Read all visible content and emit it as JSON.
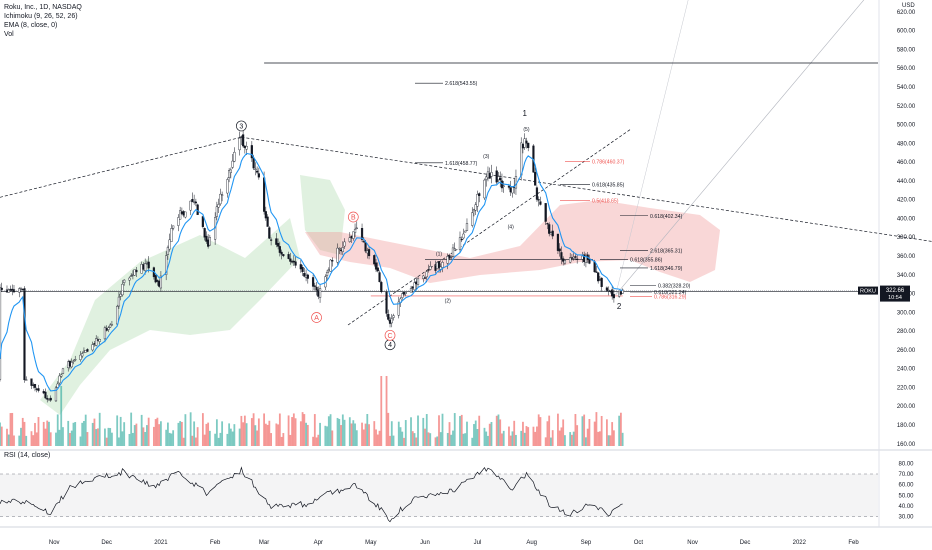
{
  "legend": {
    "line1": "Roku, Inc., 1D, NASDAQ",
    "line2": "Ichimoku (9, 26, 52, 26)",
    "line3": "EMA (8, close, 0)",
    "line4": "Vol"
  },
  "rsi_label": "RSI (14, close)",
  "currency": "USD",
  "colors": {
    "up": "#26a69a",
    "down": "#ef5350",
    "ema": "#2196f3",
    "cloud_green": "#a5d6a7",
    "cloud_red": "#ef9a9a"
  },
  "chart_data": {
    "type": "candlestick",
    "title": "Roku, Inc., 1D, NASDAQ",
    "price_axis": {
      "ylim": [
        155,
        630
      ],
      "ticks": [
        160,
        180,
        200,
        220,
        240,
        260,
        280,
        300,
        320,
        340,
        360,
        380,
        400,
        420,
        440,
        460,
        480,
        500,
        520,
        540,
        560,
        580,
        600,
        620
      ],
      "tick_labels": [
        "160.00",
        "180.00",
        "200.00",
        "220.00",
        "240.00",
        "260.00",
        "280.00",
        "300.00",
        "320.00",
        "340.00",
        "360.00",
        "380.00",
        "400.00",
        "420.00",
        "440.00",
        "460.00",
        "480.00",
        "500.00",
        "520.00",
        "540.00",
        "560.00",
        "580.00",
        "600.00",
        "620.00"
      ]
    },
    "time_axis": [
      "Nov",
      "Dec",
      "2021",
      "Feb",
      "Mar",
      "Apr",
      "May",
      "Jun",
      "Jul",
      "Aug",
      "Sep",
      "Oct",
      "Nov",
      "Dec",
      "2022",
      "Feb"
    ],
    "price_anchors": [
      {
        "date": "2020-10-15",
        "price": 228
      },
      {
        "date": "2020-10-30",
        "price": 205
      },
      {
        "date": "2020-11-06",
        "price": 240
      },
      {
        "date": "2020-11-20",
        "price": 258
      },
      {
        "date": "2020-12-04",
        "price": 290
      },
      {
        "date": "2020-12-11",
        "price": 335
      },
      {
        "date": "2020-12-24",
        "price": 350
      },
      {
        "date": "2020-12-31",
        "price": 330
      },
      {
        "date": "2021-01-08",
        "price": 395
      },
      {
        "date": "2021-01-20",
        "price": 420
      },
      {
        "date": "2021-01-28",
        "price": 372
      },
      {
        "date": "2021-02-05",
        "price": 430
      },
      {
        "date": "2021-02-16",
        "price": 486
      },
      {
        "date": "2021-02-25",
        "price": 450
      },
      {
        "date": "2021-03-05",
        "price": 372
      },
      {
        "date": "2021-03-19",
        "price": 350
      },
      {
        "date": "2021-04-01",
        "price": 320
      },
      {
        "date": "2021-04-08",
        "price": 352
      },
      {
        "date": "2021-04-16",
        "price": 375
      },
      {
        "date": "2021-04-23",
        "price": 385
      },
      {
        "date": "2021-05-04",
        "price": 348
      },
      {
        "date": "2021-05-12",
        "price": 285
      },
      {
        "date": "2021-05-20",
        "price": 320
      },
      {
        "date": "2021-06-04",
        "price": 345
      },
      {
        "date": "2021-06-14",
        "price": 355
      },
      {
        "date": "2021-06-23",
        "price": 382
      },
      {
        "date": "2021-07-06",
        "price": 448
      },
      {
        "date": "2021-07-13",
        "price": 440
      },
      {
        "date": "2021-07-21",
        "price": 428
      },
      {
        "date": "2021-07-26",
        "price": 475
      },
      {
        "date": "2021-07-29",
        "price": 484
      },
      {
        "date": "2021-08-05",
        "price": 415
      },
      {
        "date": "2021-08-12",
        "price": 380
      },
      {
        "date": "2021-08-20",
        "price": 352
      },
      {
        "date": "2021-08-27",
        "price": 360
      },
      {
        "date": "2021-09-02",
        "price": 356
      },
      {
        "date": "2021-09-10",
        "price": 330
      },
      {
        "date": "2021-09-17",
        "price": 315
      },
      {
        "date": "2021-09-22",
        "price": 322.66
      }
    ],
    "last_price": {
      "symbol": "ROKU",
      "price": "322.66",
      "countdown": "10:54"
    },
    "annotations": [
      {
        "label": "2.618(543.55)",
        "price": 543.55,
        "color": "#131722"
      },
      {
        "label": "1.618(458.77)",
        "price": 458.77,
        "color": "#131722"
      },
      {
        "label": "0.786(460.37)",
        "price": 460.37,
        "color": "#ef5350"
      },
      {
        "label": "0.618(435.85)",
        "price": 435.85,
        "color": "#131722"
      },
      {
        "label": "0.5(418.65)",
        "price": 418.65,
        "color": "#ef5350"
      },
      {
        "label": "0.618(402.34)",
        "price": 402.34,
        "color": "#131722"
      },
      {
        "label": "2.618(365.31)",
        "price": 365.31,
        "color": "#131722"
      },
      {
        "label": "0.618(355.86)",
        "price": 355.86,
        "color": "#131722"
      },
      {
        "label": "1.618(346.79)",
        "price": 346.79,
        "color": "#131722"
      },
      {
        "label": "0.382(328.20)",
        "price": 328.2,
        "color": "#131722"
      },
      {
        "label": "0.618(321.24)",
        "price": 321.24,
        "color": "#131722"
      },
      {
        "label": "0.786(316.29)",
        "price": 316.29,
        "color": "#ef5350"
      }
    ],
    "wave_labels": [
      {
        "label": "3",
        "style": "circle",
        "date": "2021-02-16",
        "price": 498
      },
      {
        "label": "4",
        "style": "circle",
        "date": "2021-05-12",
        "price": 265
      },
      {
        "label": "A",
        "style": "circle-red",
        "date": "2021-03-31",
        "price": 294
      },
      {
        "label": "B",
        "style": "circle-red",
        "date": "2021-04-21",
        "price": 401
      },
      {
        "label": "C",
        "style": "circle-red",
        "date": "2021-05-12",
        "price": 275
      },
      {
        "label": "1",
        "style": "plain",
        "date": "2021-07-28",
        "price": 512
      },
      {
        "label": "2",
        "style": "plain",
        "date": "2021-09-20",
        "price": 306
      },
      {
        "label": "(1)",
        "style": "small",
        "date": "2021-06-09",
        "price": 362
      },
      {
        "label": "(2)",
        "style": "small",
        "date": "2021-06-14",
        "price": 312
      },
      {
        "label": "(3)",
        "style": "small",
        "date": "2021-07-06",
        "price": 466
      },
      {
        "label": "(4)",
        "style": "small",
        "date": "2021-07-20",
        "price": 391
      },
      {
        "label": "(5)",
        "style": "small",
        "date": "2021-07-29",
        "price": 495
      }
    ],
    "horizontal_lines": [
      {
        "price": 565,
        "from": "2021-03-01"
      },
      {
        "price": 321.5,
        "from": "2020-10-01",
        "color": "#131722"
      }
    ],
    "rsi": {
      "ylim": [
        25,
        85
      ],
      "ticks": [
        30,
        40,
        50,
        60,
        70,
        80
      ],
      "tick_labels": [
        "30.00",
        "40.00",
        "50.00",
        "60.00",
        "70.00",
        "80.00"
      ],
      "upper": 70,
      "lower": 30,
      "anchors": [
        {
          "date": "2020-10-15",
          "value": 45
        },
        {
          "date": "2020-10-30",
          "value": 34
        },
        {
          "date": "2020-11-10",
          "value": 58
        },
        {
          "date": "2020-11-25",
          "value": 66
        },
        {
          "date": "2020-12-10",
          "value": 72
        },
        {
          "date": "2020-12-28",
          "value": 58
        },
        {
          "date": "2021-01-12",
          "value": 72
        },
        {
          "date": "2021-01-27",
          "value": 52
        },
        {
          "date": "2021-02-16",
          "value": 74
        },
        {
          "date": "2021-03-05",
          "value": 40
        },
        {
          "date": "2021-03-25",
          "value": 42
        },
        {
          "date": "2021-04-08",
          "value": 52
        },
        {
          "date": "2021-04-22",
          "value": 60
        },
        {
          "date": "2021-05-12",
          "value": 28
        },
        {
          "date": "2021-05-25",
          "value": 46
        },
        {
          "date": "2021-06-14",
          "value": 52
        },
        {
          "date": "2021-07-08",
          "value": 76
        },
        {
          "date": "2021-07-21",
          "value": 57
        },
        {
          "date": "2021-07-29",
          "value": 70
        },
        {
          "date": "2021-08-12",
          "value": 40
        },
        {
          "date": "2021-08-23",
          "value": 33
        },
        {
          "date": "2021-08-30",
          "value": 38
        },
        {
          "date": "2021-09-03",
          "value": 42
        },
        {
          "date": "2021-09-15",
          "value": 32
        },
        {
          "date": "2021-09-22",
          "value": 44
        }
      ]
    }
  }
}
